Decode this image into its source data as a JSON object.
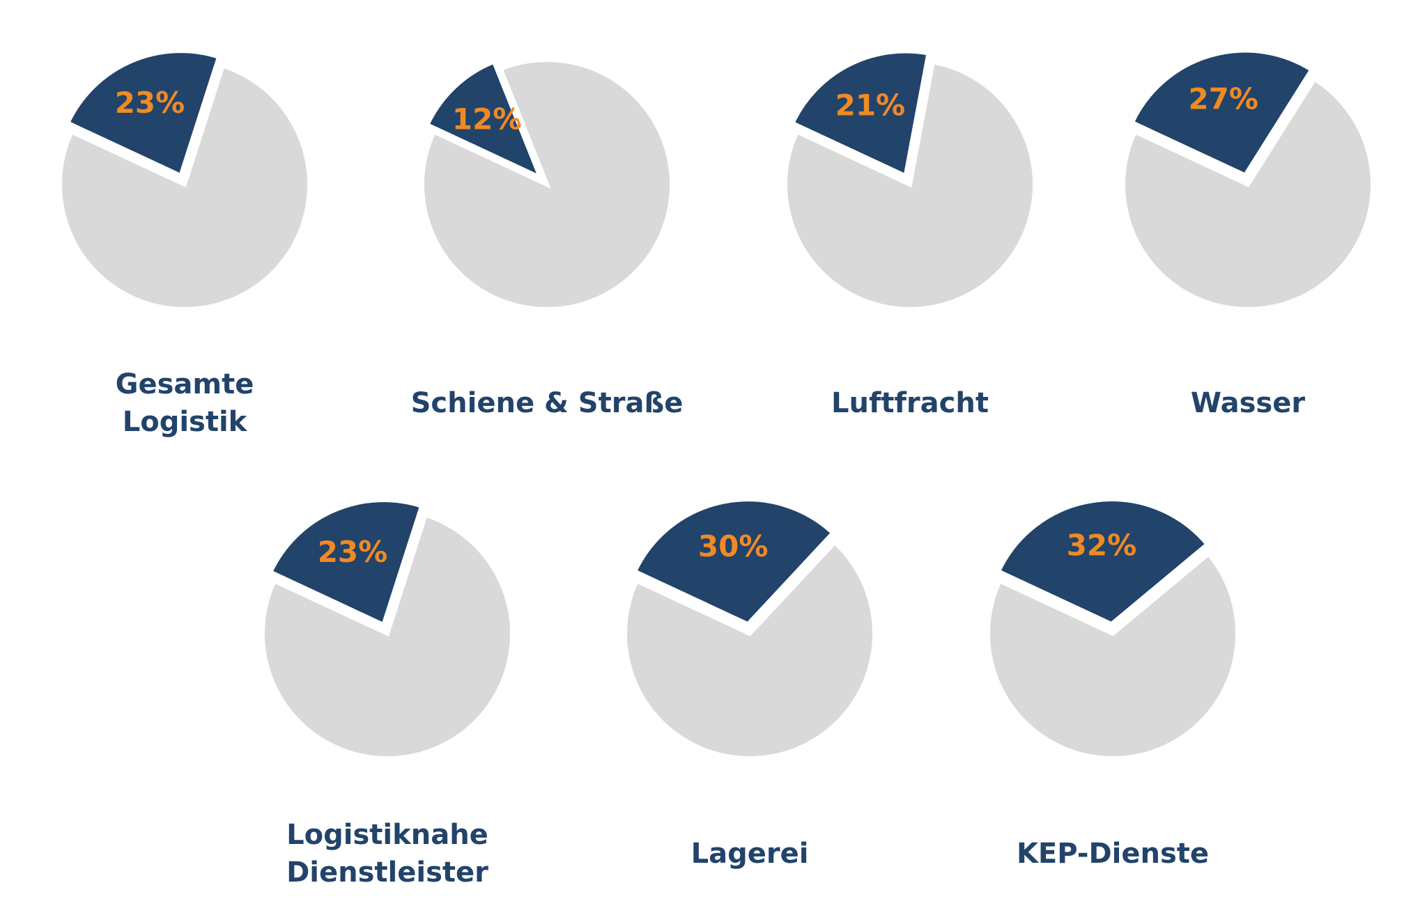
{
  "chart_data": [
    {
      "type": "pie",
      "title": [
        "Gesamte",
        "Logistik"
      ],
      "values": [
        23,
        77
      ],
      "value_labels": [
        "23%",
        null
      ],
      "colors": [
        "#22436a",
        "#d9d9d9"
      ]
    },
    {
      "type": "pie",
      "title": [
        "Schiene & Straße"
      ],
      "values": [
        12,
        88
      ],
      "value_labels": [
        "12%",
        null
      ],
      "colors": [
        "#22436a",
        "#d9d9d9"
      ]
    },
    {
      "type": "pie",
      "title": [
        "Luftfracht"
      ],
      "values": [
        21,
        79
      ],
      "value_labels": [
        "21%",
        null
      ],
      "colors": [
        "#22436a",
        "#d9d9d9"
      ]
    },
    {
      "type": "pie",
      "title": [
        "Wasser"
      ],
      "values": [
        27,
        73
      ],
      "value_labels": [
        "27%",
        null
      ],
      "colors": [
        "#22436a",
        "#d9d9d9"
      ]
    },
    {
      "type": "pie",
      "title": [
        "Logistiknahe",
        "Dienstleister"
      ],
      "values": [
        23,
        77
      ],
      "value_labels": [
        "23%",
        null
      ],
      "colors": [
        "#22436a",
        "#d9d9d9"
      ]
    },
    {
      "type": "pie",
      "title": [
        "Lagerei"
      ],
      "values": [
        30,
        70
      ],
      "value_labels": [
        "30%",
        null
      ],
      "colors": [
        "#22436a",
        "#d9d9d9"
      ]
    },
    {
      "type": "pie",
      "title": [
        "KEP-Dienste"
      ],
      "values": [
        32,
        68
      ],
      "value_labels": [
        "32%",
        null
      ],
      "colors": [
        "#22436a",
        "#d9d9d9"
      ]
    }
  ]
}
